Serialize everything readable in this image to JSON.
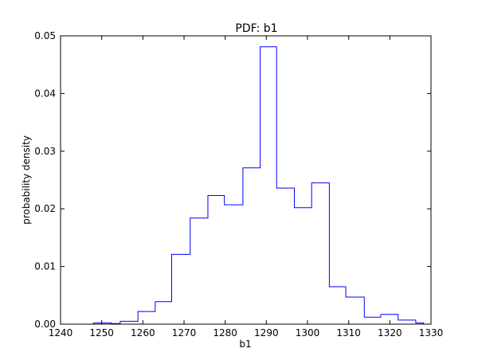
{
  "chart_data": {
    "type": "histogram",
    "title": "PDF: b1",
    "xlabel": "b1",
    "ylabel": "probability density",
    "xlim": [
      1240,
      1330
    ],
    "ylim": [
      0,
      0.05
    ],
    "xticks": [
      1240,
      1250,
      1260,
      1270,
      1280,
      1290,
      1300,
      1310,
      1320,
      1330
    ],
    "yticks": [
      0.0,
      0.01,
      0.02,
      0.03,
      0.04,
      0.05
    ],
    "xtick_labels": [
      "1240",
      "1250",
      "1260",
      "1270",
      "1280",
      "1290",
      "1300",
      "1310",
      "1320",
      "1330"
    ],
    "ytick_labels": [
      "0.00",
      "0.01",
      "0.02",
      "0.03",
      "0.04",
      "0.05"
    ],
    "bin_edges": [
      1248.0,
      1252.3,
      1254.5,
      1258.8,
      1263.0,
      1267.0,
      1271.5,
      1275.8,
      1279.8,
      1284.3,
      1288.5,
      1292.5,
      1296.8,
      1301.0,
      1305.3,
      1309.3,
      1313.8,
      1317.8,
      1322.0,
      1326.3,
      1328.2
    ],
    "values": [
      0.0002,
      0.0001,
      0.0005,
      0.0022,
      0.0039,
      0.0121,
      0.0184,
      0.0223,
      0.0207,
      0.0271,
      0.0481,
      0.0236,
      0.0202,
      0.0245,
      0.0065,
      0.0047,
      0.0012,
      0.0017,
      0.0007,
      0.0002
    ],
    "series_color": "#0000ff",
    "grid": false,
    "legend": "none"
  }
}
